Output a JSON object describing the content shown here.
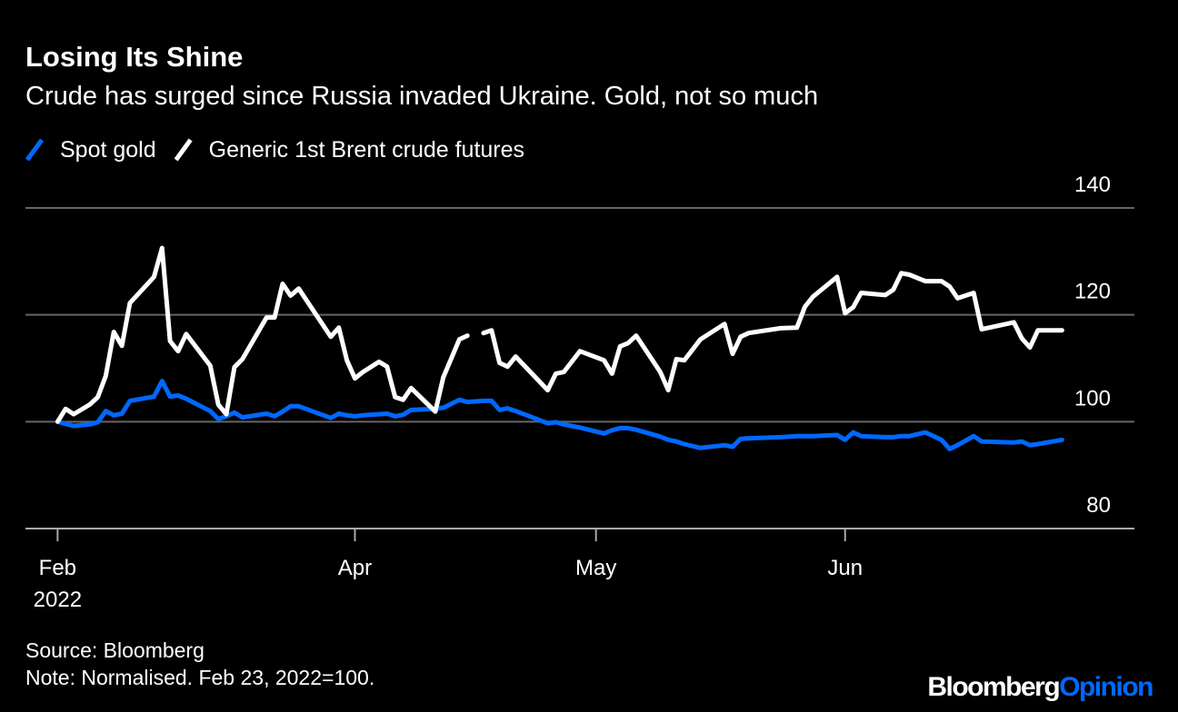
{
  "chart_data": {
    "type": "line",
    "title": "Losing Its Shine",
    "subtitle": "Crude has surged since Russia invaded Ukraine. Gold, not so much",
    "x": [
      0,
      1,
      2,
      4,
      5,
      6,
      7,
      8,
      9,
      12,
      13,
      14,
      15,
      16,
      19,
      20,
      21,
      22,
      23,
      26,
      27,
      28,
      29,
      30,
      34,
      35,
      36,
      37,
      38,
      40,
      41,
      42,
      43,
      44,
      47,
      48,
      50,
      51,
      52,
      53,
      54,
      55,
      56,
      57,
      61,
      62,
      63,
      65,
      68,
      69,
      70,
      71,
      72,
      75,
      76,
      77,
      78,
      80,
      83,
      84,
      85,
      86,
      90,
      92,
      93,
      94,
      97,
      98,
      99,
      100,
      103,
      104,
      105,
      106,
      108,
      110,
      111,
      112,
      114,
      115,
      119,
      120,
      121,
      122,
      125
    ],
    "series": [
      {
        "name": "Spot gold",
        "color": "#0068ff",
        "values": [
          100,
          99.6,
          99.2,
          99.5,
          99.9,
          102.0,
          101.2,
          101.5,
          103.9,
          104.7,
          107.6,
          104.7,
          104.9,
          104.3,
          102.0,
          100.5,
          101.0,
          101.7,
          100.8,
          101.5,
          101.0,
          101.9,
          102.9,
          102.9,
          100.7,
          101.5,
          101.2,
          101.0,
          101.2,
          101.4,
          101.5,
          101.0,
          101.3,
          102.2,
          102.4,
          102.6,
          104.1,
          103.7,
          103.8,
          103.9,
          103.9,
          102.2,
          102.5,
          102.0,
          99.7,
          99.9,
          99.5,
          98.9,
          97.8,
          98.4,
          98.8,
          98.8,
          98.5,
          97.2,
          96.6,
          96.3,
          95.8,
          95.1,
          95.6,
          95.3,
          96.8,
          96.9,
          97.1,
          97.3,
          97.3,
          97.3,
          97.5,
          96.6,
          98.0,
          97.3,
          97.1,
          97.1,
          97.3,
          97.3,
          98.0,
          96.6,
          94.9,
          95.6,
          97.3,
          96.3,
          96.1,
          96.3,
          95.6,
          95.8,
          96.6
        ]
      },
      {
        "name": "Generic 1st Brent crude futures",
        "color": "#ffffff",
        "values": [
          100,
          102.4,
          101.4,
          103.2,
          104.6,
          108.6,
          116.8,
          114.2,
          122.2,
          127.1,
          132.5,
          115.1,
          113.2,
          116.4,
          110.5,
          103.2,
          101.4,
          110.2,
          111.7,
          119.5,
          119.5,
          125.8,
          123.6,
          124.9,
          115.9,
          117.6,
          111.5,
          108.1,
          109.3,
          111.2,
          110.3,
          104.6,
          104.1,
          106.3,
          101.9,
          108.3,
          115.4,
          116.1,
          null,
          116.6,
          117.1,
          111.0,
          110.3,
          112.2,
          105.9,
          109.0,
          109.3,
          113.2,
          111.5,
          109.0,
          114.1,
          114.7,
          116.1,
          109.3,
          105.9,
          111.7,
          111.5,
          115.4,
          118.3,
          112.7,
          115.9,
          116.6,
          117.5,
          117.6,
          121.5,
          123.4,
          127.1,
          120.3,
          121.4,
          124.1,
          123.7,
          124.7,
          127.8,
          127.5,
          126.3,
          126.3,
          125.3,
          123.1,
          124.1,
          117.3,
          118.6,
          115.6,
          113.9,
          117.1,
          117.1
        ]
      }
    ],
    "xlim": [
      -4,
      134
    ],
    "xticks": [
      {
        "value": 0,
        "label": "Feb"
      },
      {
        "value": 37,
        "label": "Apr"
      },
      {
        "value": 67,
        "label": "May"
      },
      {
        "value": 98,
        "label": "Jun"
      }
    ],
    "x_year_label": "2022",
    "ylim": [
      80,
      140
    ],
    "yticks": [
      80,
      100,
      120,
      140
    ],
    "grid": true,
    "source": "Source: Bloomberg",
    "note": "Note: Normalised. Feb 23, 2022=100."
  },
  "brand": {
    "name": "Bloomberg",
    "section": "Opinion"
  }
}
